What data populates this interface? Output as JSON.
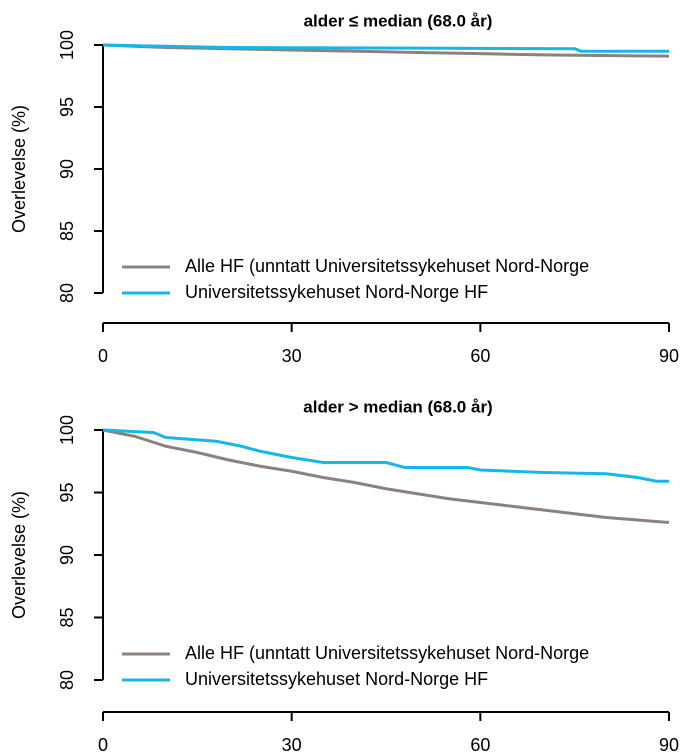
{
  "chart_data": [
    {
      "type": "line",
      "title": "alder ≤ median (68.0 år)",
      "ylabel": "Overlevelse (%)",
      "xlim": [
        0,
        90
      ],
      "xticks": [
        0,
        30,
        60,
        90
      ],
      "ylim": [
        80,
        100
      ],
      "yticks": [
        80,
        85,
        90,
        95,
        100
      ],
      "legend": "bottom-left",
      "series": [
        {
          "name": "Alle HF (unntatt Universitetssykehuset Nord-Norge",
          "color": "#8c827d",
          "x": [
            0,
            10,
            30,
            50,
            60,
            70,
            90
          ],
          "values": [
            100,
            99.8,
            99.6,
            99.4,
            99.3,
            99.2,
            99.1
          ]
        },
        {
          "name": "Universitetssykehuset Nord-Norge HF",
          "color": "#17b5ea",
          "x": [
            0,
            20,
            75,
            76,
            90
          ],
          "values": [
            100,
            99.8,
            99.7,
            99.5,
            99.5
          ]
        }
      ]
    },
    {
      "type": "line",
      "title": "alder > median (68.0 år)",
      "ylabel": "Overlevelse (%)",
      "xlim": [
        0,
        90
      ],
      "xticks": [
        0,
        30,
        60,
        90
      ],
      "ylim": [
        80,
        100
      ],
      "yticks": [
        80,
        85,
        90,
        95,
        100
      ],
      "legend": "bottom-left",
      "series": [
        {
          "name": "Alle HF (unntatt Universitetssykehuset Nord-Norge",
          "color": "#8c827d",
          "x": [
            0,
            5,
            10,
            15,
            20,
            25,
            30,
            35,
            40,
            45,
            50,
            55,
            60,
            65,
            70,
            75,
            80,
            85,
            90
          ],
          "values": [
            100,
            99.5,
            98.7,
            98.2,
            97.6,
            97.1,
            96.7,
            96.2,
            95.8,
            95.3,
            94.9,
            94.5,
            94.2,
            93.9,
            93.6,
            93.3,
            93.0,
            92.8,
            92.6
          ]
        },
        {
          "name": "Universitetssykehuset Nord-Norge HF",
          "color": "#17b5ea",
          "x": [
            0,
            8,
            10,
            18,
            22,
            25,
            30,
            35,
            45,
            48,
            58,
            60,
            70,
            80,
            85,
            88,
            90
          ],
          "values": [
            100,
            99.8,
            99.4,
            99.1,
            98.7,
            98.3,
            97.8,
            97.4,
            97.4,
            97.0,
            97.0,
            96.8,
            96.6,
            96.5,
            96.2,
            95.9,
            95.9
          ]
        }
      ]
    }
  ]
}
